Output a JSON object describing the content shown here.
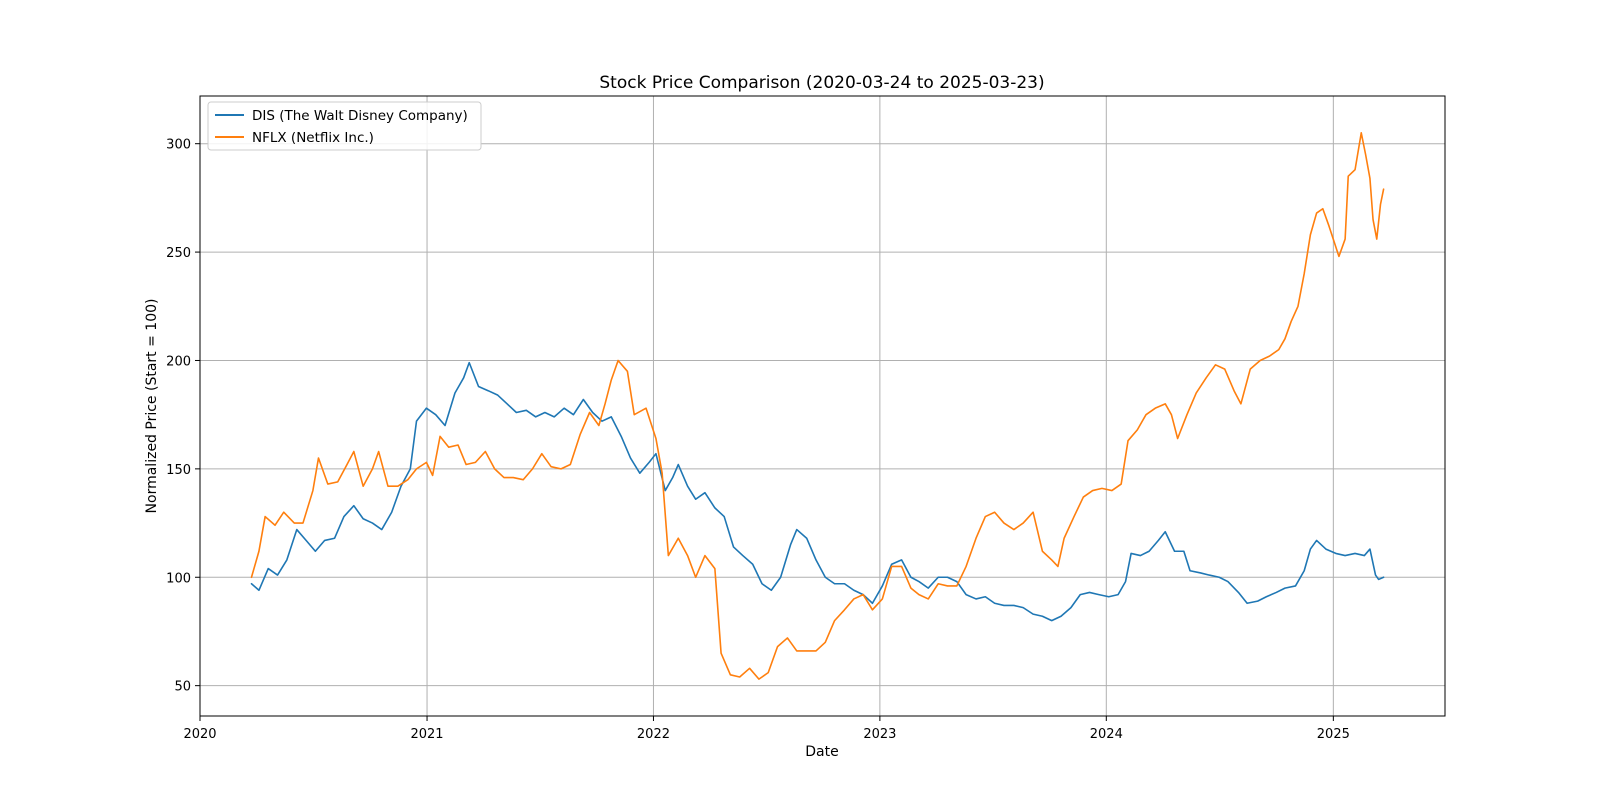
{
  "chart_data": {
    "type": "line",
    "title": "Stock Price Comparison (2020-03-24 to 2025-03-23)",
    "xlabel": "Date",
    "ylabel": "Normalized Price (Start = 100)",
    "xlim": [
      "2020-01-01",
      "2025-06-30"
    ],
    "ylim": [
      36,
      322
    ],
    "x_ticks": [
      "2020",
      "2021",
      "2022",
      "2023",
      "2024",
      "2025"
    ],
    "y_ticks": [
      50,
      100,
      150,
      200,
      250,
      300
    ],
    "grid": true,
    "legend_position": "top-left",
    "series": [
      {
        "name": "DIS (The Walt Disney Company)",
        "color": "#1f77b4",
        "points": [
          [
            "2020-03-24",
            97
          ],
          [
            "2020-04-05",
            94
          ],
          [
            "2020-04-20",
            104
          ],
          [
            "2020-05-05",
            101
          ],
          [
            "2020-05-20",
            108
          ],
          [
            "2020-06-05",
            122
          ],
          [
            "2020-06-20",
            117
          ],
          [
            "2020-07-05",
            112
          ],
          [
            "2020-07-20",
            117
          ],
          [
            "2020-08-05",
            118
          ],
          [
            "2020-08-20",
            128
          ],
          [
            "2020-09-05",
            133
          ],
          [
            "2020-09-20",
            127
          ],
          [
            "2020-10-05",
            125
          ],
          [
            "2020-10-20",
            122
          ],
          [
            "2020-11-05",
            130
          ],
          [
            "2020-11-20",
            142
          ],
          [
            "2020-12-05",
            150
          ],
          [
            "2020-12-15",
            172
          ],
          [
            "2020-12-31",
            178
          ],
          [
            "2021-01-15",
            175
          ],
          [
            "2021-01-30",
            170
          ],
          [
            "2021-02-15",
            185
          ],
          [
            "2021-03-01",
            192
          ],
          [
            "2021-03-10",
            199
          ],
          [
            "2021-03-25",
            188
          ],
          [
            "2021-04-10",
            186
          ],
          [
            "2021-04-25",
            184
          ],
          [
            "2021-05-10",
            180
          ],
          [
            "2021-05-25",
            176
          ],
          [
            "2021-06-10",
            177
          ],
          [
            "2021-06-25",
            174
          ],
          [
            "2021-07-10",
            176
          ],
          [
            "2021-07-25",
            174
          ],
          [
            "2021-08-10",
            178
          ],
          [
            "2021-08-25",
            175
          ],
          [
            "2021-09-10",
            182
          ],
          [
            "2021-09-25",
            176
          ],
          [
            "2021-10-10",
            172
          ],
          [
            "2021-10-25",
            174
          ],
          [
            "2021-11-10",
            165
          ],
          [
            "2021-11-25",
            155
          ],
          [
            "2021-12-10",
            148
          ],
          [
            "2021-12-25",
            153
          ],
          [
            "2022-01-05",
            157
          ],
          [
            "2022-01-20",
            140
          ],
          [
            "2022-02-01",
            146
          ],
          [
            "2022-02-10",
            152
          ],
          [
            "2022-02-25",
            142
          ],
          [
            "2022-03-10",
            136
          ],
          [
            "2022-03-25",
            139
          ],
          [
            "2022-04-10",
            132
          ],
          [
            "2022-04-25",
            128
          ],
          [
            "2022-05-10",
            114
          ],
          [
            "2022-05-25",
            110
          ],
          [
            "2022-06-10",
            106
          ],
          [
            "2022-06-25",
            97
          ],
          [
            "2022-07-10",
            94
          ],
          [
            "2022-07-25",
            100
          ],
          [
            "2022-08-10",
            115
          ],
          [
            "2022-08-20",
            122
          ],
          [
            "2022-09-05",
            118
          ],
          [
            "2022-09-20",
            108
          ],
          [
            "2022-10-05",
            100
          ],
          [
            "2022-10-20",
            97
          ],
          [
            "2022-11-05",
            97
          ],
          [
            "2022-11-20",
            94
          ],
          [
            "2022-12-05",
            92
          ],
          [
            "2022-12-20",
            88
          ],
          [
            "2023-01-05",
            96
          ],
          [
            "2023-01-20",
            106
          ],
          [
            "2023-02-05",
            108
          ],
          [
            "2023-02-20",
            100
          ],
          [
            "2023-03-05",
            98
          ],
          [
            "2023-03-20",
            95
          ],
          [
            "2023-04-05",
            100
          ],
          [
            "2023-04-20",
            100
          ],
          [
            "2023-05-05",
            98
          ],
          [
            "2023-05-20",
            92
          ],
          [
            "2023-06-05",
            90
          ],
          [
            "2023-06-20",
            91
          ],
          [
            "2023-07-05",
            88
          ],
          [
            "2023-07-20",
            87
          ],
          [
            "2023-08-05",
            87
          ],
          [
            "2023-08-20",
            86
          ],
          [
            "2023-09-05",
            83
          ],
          [
            "2023-09-20",
            82
          ],
          [
            "2023-10-05",
            80
          ],
          [
            "2023-10-20",
            82
          ],
          [
            "2023-11-05",
            86
          ],
          [
            "2023-11-20",
            92
          ],
          [
            "2023-12-05",
            93
          ],
          [
            "2023-12-20",
            92
          ],
          [
            "2024-01-05",
            91
          ],
          [
            "2024-01-20",
            92
          ],
          [
            "2024-02-01",
            98
          ],
          [
            "2024-02-10",
            111
          ],
          [
            "2024-02-25",
            110
          ],
          [
            "2024-03-10",
            112
          ],
          [
            "2024-03-25",
            117
          ],
          [
            "2024-04-05",
            121
          ],
          [
            "2024-04-20",
            112
          ],
          [
            "2024-05-05",
            112
          ],
          [
            "2024-05-15",
            103
          ],
          [
            "2024-06-01",
            102
          ],
          [
            "2024-06-15",
            101
          ],
          [
            "2024-07-01",
            100
          ],
          [
            "2024-07-15",
            98
          ],
          [
            "2024-08-01",
            93
          ],
          [
            "2024-08-15",
            88
          ],
          [
            "2024-09-01",
            89
          ],
          [
            "2024-09-15",
            91
          ],
          [
            "2024-10-01",
            93
          ],
          [
            "2024-10-15",
            95
          ],
          [
            "2024-11-01",
            96
          ],
          [
            "2024-11-15",
            103
          ],
          [
            "2024-11-25",
            113
          ],
          [
            "2024-12-05",
            117
          ],
          [
            "2024-12-20",
            113
          ],
          [
            "2025-01-05",
            111
          ],
          [
            "2025-01-20",
            110
          ],
          [
            "2025-02-05",
            111
          ],
          [
            "2025-02-20",
            110
          ],
          [
            "2025-03-01",
            113
          ],
          [
            "2025-03-10",
            101
          ],
          [
            "2025-03-15",
            99
          ],
          [
            "2025-03-23",
            100
          ]
        ]
      },
      {
        "name": "NFLX (Netflix Inc.)",
        "color": "#ff7f0e",
        "points": [
          [
            "2020-03-24",
            100
          ],
          [
            "2020-04-05",
            112
          ],
          [
            "2020-04-15",
            128
          ],
          [
            "2020-05-01",
            124
          ],
          [
            "2020-05-15",
            130
          ],
          [
            "2020-06-01",
            125
          ],
          [
            "2020-06-15",
            125
          ],
          [
            "2020-07-01",
            140
          ],
          [
            "2020-07-10",
            155
          ],
          [
            "2020-07-25",
            143
          ],
          [
            "2020-08-10",
            144
          ],
          [
            "2020-08-25",
            152
          ],
          [
            "2020-09-05",
            158
          ],
          [
            "2020-09-20",
            142
          ],
          [
            "2020-10-05",
            150
          ],
          [
            "2020-10-15",
            158
          ],
          [
            "2020-10-30",
            142
          ],
          [
            "2020-11-15",
            142
          ],
          [
            "2020-12-01",
            145
          ],
          [
            "2020-12-15",
            150
          ],
          [
            "2020-12-31",
            153
          ],
          [
            "2021-01-10",
            147
          ],
          [
            "2021-01-22",
            165
          ],
          [
            "2021-02-05",
            160
          ],
          [
            "2021-02-20",
            161
          ],
          [
            "2021-03-05",
            152
          ],
          [
            "2021-03-20",
            153
          ],
          [
            "2021-04-05",
            158
          ],
          [
            "2021-04-20",
            150
          ],
          [
            "2021-05-05",
            146
          ],
          [
            "2021-05-20",
            146
          ],
          [
            "2021-06-05",
            145
          ],
          [
            "2021-06-20",
            150
          ],
          [
            "2021-07-05",
            157
          ],
          [
            "2021-07-20",
            151
          ],
          [
            "2021-08-05",
            150
          ],
          [
            "2021-08-20",
            152
          ],
          [
            "2021-09-05",
            166
          ],
          [
            "2021-09-20",
            176
          ],
          [
            "2021-10-05",
            170
          ],
          [
            "2021-10-15",
            180
          ],
          [
            "2021-10-25",
            191
          ],
          [
            "2021-11-05",
            200
          ],
          [
            "2021-11-20",
            195
          ],
          [
            "2021-12-01",
            175
          ],
          [
            "2021-12-20",
            178
          ],
          [
            "2022-01-05",
            164
          ],
          [
            "2022-01-15",
            148
          ],
          [
            "2022-01-25",
            110
          ],
          [
            "2022-02-10",
            118
          ],
          [
            "2022-02-25",
            110
          ],
          [
            "2022-03-10",
            100
          ],
          [
            "2022-03-25",
            110
          ],
          [
            "2022-04-10",
            104
          ],
          [
            "2022-04-20",
            65
          ],
          [
            "2022-05-05",
            55
          ],
          [
            "2022-05-20",
            54
          ],
          [
            "2022-06-05",
            58
          ],
          [
            "2022-06-20",
            53
          ],
          [
            "2022-07-05",
            56
          ],
          [
            "2022-07-20",
            68
          ],
          [
            "2022-08-05",
            72
          ],
          [
            "2022-08-20",
            66
          ],
          [
            "2022-09-05",
            66
          ],
          [
            "2022-09-20",
            66
          ],
          [
            "2022-10-05",
            70
          ],
          [
            "2022-10-20",
            80
          ],
          [
            "2022-11-05",
            85
          ],
          [
            "2022-11-20",
            90
          ],
          [
            "2022-12-05",
            92
          ],
          [
            "2022-12-20",
            85
          ],
          [
            "2023-01-05",
            90
          ],
          [
            "2023-01-20",
            105
          ],
          [
            "2023-02-05",
            105
          ],
          [
            "2023-02-20",
            95
          ],
          [
            "2023-03-05",
            92
          ],
          [
            "2023-03-20",
            90
          ],
          [
            "2023-04-05",
            97
          ],
          [
            "2023-04-20",
            96
          ],
          [
            "2023-05-05",
            96
          ],
          [
            "2023-05-20",
            105
          ],
          [
            "2023-06-05",
            118
          ],
          [
            "2023-06-20",
            128
          ],
          [
            "2023-07-05",
            130
          ],
          [
            "2023-07-20",
            125
          ],
          [
            "2023-08-05",
            122
          ],
          [
            "2023-08-20",
            125
          ],
          [
            "2023-09-05",
            130
          ],
          [
            "2023-09-20",
            112
          ],
          [
            "2023-10-05",
            108
          ],
          [
            "2023-10-15",
            105
          ],
          [
            "2023-10-25",
            118
          ],
          [
            "2023-11-10",
            128
          ],
          [
            "2023-11-25",
            137
          ],
          [
            "2023-12-10",
            140
          ],
          [
            "2023-12-25",
            141
          ],
          [
            "2024-01-10",
            140
          ],
          [
            "2024-01-25",
            143
          ],
          [
            "2024-02-05",
            163
          ],
          [
            "2024-02-20",
            168
          ],
          [
            "2024-03-05",
            175
          ],
          [
            "2024-03-20",
            178
          ],
          [
            "2024-04-05",
            180
          ],
          [
            "2024-04-15",
            175
          ],
          [
            "2024-04-25",
            164
          ],
          [
            "2024-05-10",
            175
          ],
          [
            "2024-05-25",
            185
          ],
          [
            "2024-06-10",
            192
          ],
          [
            "2024-06-25",
            198
          ],
          [
            "2024-07-10",
            196
          ],
          [
            "2024-07-25",
            186
          ],
          [
            "2024-08-05",
            180
          ],
          [
            "2024-08-20",
            196
          ],
          [
            "2024-09-05",
            200
          ],
          [
            "2024-09-20",
            202
          ],
          [
            "2024-10-05",
            205
          ],
          [
            "2024-10-15",
            210
          ],
          [
            "2024-10-25",
            218
          ],
          [
            "2024-11-05",
            225
          ],
          [
            "2024-11-15",
            240
          ],
          [
            "2024-11-25",
            258
          ],
          [
            "2024-12-05",
            268
          ],
          [
            "2024-12-15",
            270
          ],
          [
            "2024-12-25",
            262
          ],
          [
            "2025-01-10",
            248
          ],
          [
            "2025-01-20",
            256
          ],
          [
            "2025-01-25",
            285
          ],
          [
            "2025-02-05",
            288
          ],
          [
            "2025-02-15",
            305
          ],
          [
            "2025-02-22",
            295
          ],
          [
            "2025-03-01",
            284
          ],
          [
            "2025-03-06",
            265
          ],
          [
            "2025-03-12",
            256
          ],
          [
            "2025-03-18",
            272
          ],
          [
            "2025-03-23",
            279
          ]
        ]
      }
    ]
  }
}
